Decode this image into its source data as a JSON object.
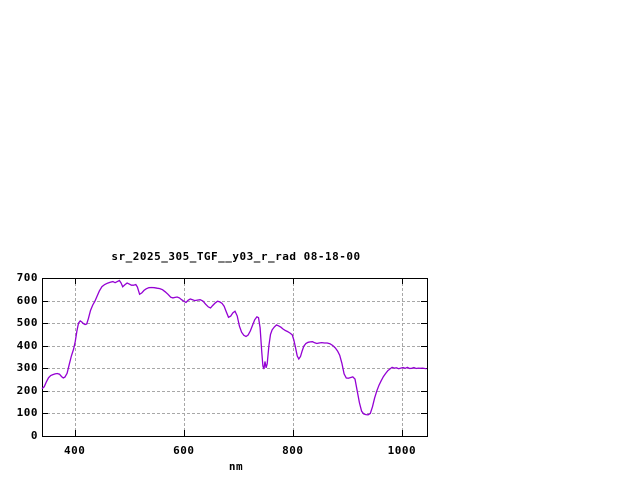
{
  "chart_data": {
    "type": "line",
    "title": "sr_2025_305_TGF__y03_r_rad 08-18-00",
    "xlabel": "nm",
    "ylabel": "",
    "xlim": [
      340,
      1046
    ],
    "ylim": [
      0,
      700
    ],
    "xticks": [
      400,
      600,
      800,
      1000
    ],
    "yticks": [
      0,
      100,
      200,
      300,
      400,
      500,
      600,
      700
    ],
    "grid": true,
    "legend": "none",
    "series": [
      {
        "name": "spectral-radiance",
        "color": "#9400D3",
        "points": [
          [
            340,
            210
          ],
          [
            344,
            218
          ],
          [
            348,
            240
          ],
          [
            352,
            258
          ],
          [
            356,
            268
          ],
          [
            360,
            272
          ],
          [
            364,
            275
          ],
          [
            368,
            277
          ],
          [
            372,
            274
          ],
          [
            376,
            263
          ],
          [
            379,
            257
          ],
          [
            382,
            261
          ],
          [
            386,
            278
          ],
          [
            390,
            318
          ],
          [
            394,
            355
          ],
          [
            398,
            385
          ],
          [
            401,
            420
          ],
          [
            404,
            465
          ],
          [
            407,
            500
          ],
          [
            410,
            510
          ],
          [
            413,
            505
          ],
          [
            416,
            498
          ],
          [
            419,
            494
          ],
          [
            422,
            496
          ],
          [
            425,
            520
          ],
          [
            429,
            556
          ],
          [
            433,
            580
          ],
          [
            437,
            597
          ],
          [
            441,
            620
          ],
          [
            445,
            642
          ],
          [
            450,
            662
          ],
          [
            455,
            671
          ],
          [
            460,
            677
          ],
          [
            465,
            681
          ],
          [
            470,
            684
          ],
          [
            474,
            679
          ],
          [
            478,
            684
          ],
          [
            482,
            689
          ],
          [
            485,
            678
          ],
          [
            488,
            661
          ],
          [
            492,
            670
          ],
          [
            496,
            678
          ],
          [
            500,
            673
          ],
          [
            504,
            668
          ],
          [
            508,
            668
          ],
          [
            512,
            671
          ],
          [
            515,
            660
          ],
          [
            519,
            628
          ],
          [
            523,
            634
          ],
          [
            527,
            645
          ],
          [
            531,
            652
          ],
          [
            536,
            657
          ],
          [
            541,
            658
          ],
          [
            546,
            657
          ],
          [
            551,
            655
          ],
          [
            556,
            653
          ],
          [
            561,
            648
          ],
          [
            566,
            639
          ],
          [
            571,
            628
          ],
          [
            576,
            615
          ],
          [
            580,
            612
          ],
          [
            584,
            614
          ],
          [
            588,
            616
          ],
          [
            592,
            612
          ],
          [
            596,
            604
          ],
          [
            600,
            597
          ],
          [
            604,
            592
          ],
          [
            608,
            601
          ],
          [
            612,
            607
          ],
          [
            616,
            604
          ],
          [
            620,
            600
          ],
          [
            625,
            602
          ],
          [
            630,
            604
          ],
          [
            635,
            598
          ],
          [
            640,
            584
          ],
          [
            645,
            572
          ],
          [
            649,
            567
          ],
          [
            653,
            578
          ],
          [
            658,
            590
          ],
          [
            662,
            597
          ],
          [
            666,
            594
          ],
          [
            670,
            588
          ],
          [
            674,
            575
          ],
          [
            678,
            550
          ],
          [
            682,
            526
          ],
          [
            686,
            531
          ],
          [
            690,
            546
          ],
          [
            694,
            553
          ],
          [
            698,
            532
          ],
          [
            702,
            487
          ],
          [
            706,
            460
          ],
          [
            710,
            446
          ],
          [
            714,
            441
          ],
          [
            718,
            447
          ],
          [
            722,
            465
          ],
          [
            726,
            490
          ],
          [
            730,
            515
          ],
          [
            734,
            528
          ],
          [
            737,
            524
          ],
          [
            740,
            480
          ],
          [
            743,
            370
          ],
          [
            745,
            310
          ],
          [
            747,
            297
          ],
          [
            749,
            330
          ],
          [
            751,
            302
          ],
          [
            753,
            320
          ],
          [
            756,
            400
          ],
          [
            759,
            450
          ],
          [
            762,
            470
          ],
          [
            766,
            483
          ],
          [
            770,
            492
          ],
          [
            774,
            488
          ],
          [
            778,
            482
          ],
          [
            782,
            474
          ],
          [
            786,
            468
          ],
          [
            790,
            463
          ],
          [
            795,
            456
          ],
          [
            799,
            448
          ],
          [
            802,
            424
          ],
          [
            805,
            390
          ],
          [
            808,
            355
          ],
          [
            811,
            341
          ],
          [
            814,
            352
          ],
          [
            817,
            376
          ],
          [
            820,
            398
          ],
          [
            824,
            410
          ],
          [
            828,
            415
          ],
          [
            832,
            417
          ],
          [
            836,
            418
          ],
          [
            840,
            413
          ],
          [
            844,
            410
          ],
          [
            848,
            412
          ],
          [
            853,
            414
          ],
          [
            858,
            412
          ],
          [
            863,
            412
          ],
          [
            868,
            409
          ],
          [
            873,
            401
          ],
          [
            878,
            390
          ],
          [
            882,
            376
          ],
          [
            886,
            358
          ],
          [
            890,
            322
          ],
          [
            894,
            275
          ],
          [
            898,
            257
          ],
          [
            902,
            256
          ],
          [
            906,
            259
          ],
          [
            910,
            262
          ],
          [
            914,
            252
          ],
          [
            918,
            200
          ],
          [
            922,
            148
          ],
          [
            926,
            110
          ],
          [
            930,
            98
          ],
          [
            934,
            95
          ],
          [
            938,
            94
          ],
          [
            942,
            100
          ],
          [
            946,
            130
          ],
          [
            950,
            168
          ],
          [
            954,
            200
          ],
          [
            958,
            225
          ],
          [
            962,
            245
          ],
          [
            966,
            263
          ],
          [
            970,
            277
          ],
          [
            974,
            289
          ],
          [
            978,
            297
          ],
          [
            982,
            304
          ],
          [
            986,
            301
          ],
          [
            990,
            302
          ],
          [
            994,
            298
          ],
          [
            998,
            301
          ],
          [
            1002,
            303
          ],
          [
            1006,
            300
          ],
          [
            1010,
            304
          ],
          [
            1014,
            299
          ],
          [
            1018,
            300
          ],
          [
            1022,
            303
          ],
          [
            1026,
            299
          ],
          [
            1030,
            301
          ],
          [
            1034,
            300
          ],
          [
            1038,
            301
          ],
          [
            1042,
            299
          ],
          [
            1045,
            298
          ]
        ]
      }
    ]
  },
  "colors": {
    "background": "#FFFFFF",
    "axis": "#000000",
    "grid": "#A8A8A8",
    "text": "#000000",
    "curve": "#9400D3"
  }
}
